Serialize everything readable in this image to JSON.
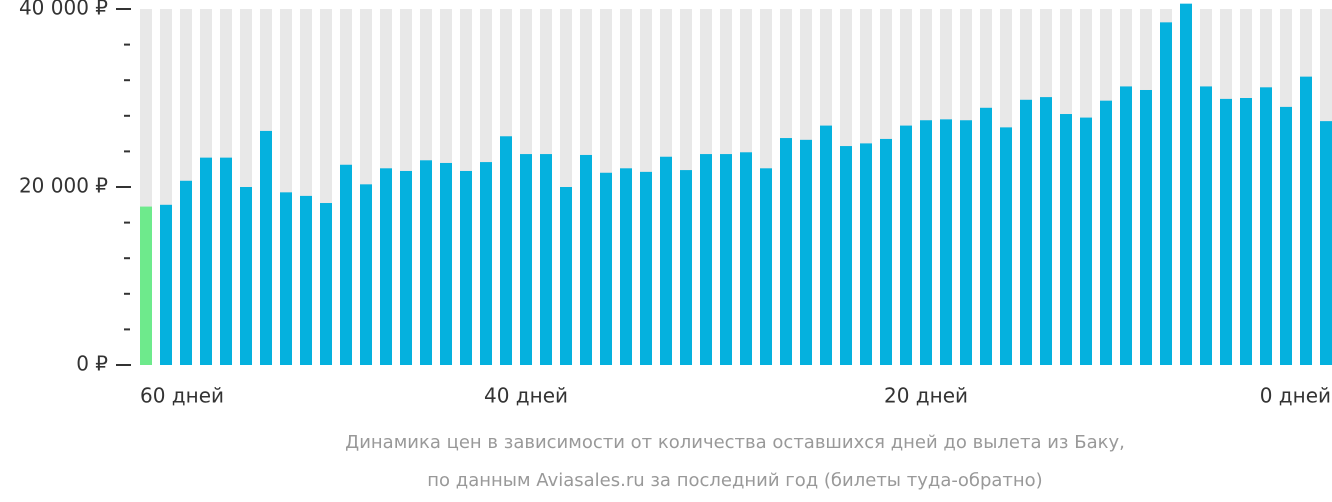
{
  "chart_data": {
    "type": "bar",
    "caption": [
      "Динамика цен в зависимости от количества оставшихся дней до вылета из Баку,",
      "по данным Aviasales.ru за последний год (билеты туда-обратно)"
    ],
    "categories": [
      "60 дней",
      null,
      null,
      null,
      null,
      null,
      null,
      null,
      null,
      null,
      null,
      null,
      null,
      null,
      null,
      null,
      null,
      null,
      null,
      "40 дней",
      null,
      null,
      null,
      null,
      null,
      null,
      null,
      null,
      null,
      null,
      null,
      null,
      null,
      null,
      null,
      null,
      null,
      null,
      null,
      "20 дней",
      null,
      null,
      null,
      null,
      null,
      null,
      null,
      null,
      null,
      null,
      null,
      null,
      null,
      null,
      null,
      null,
      null,
      null,
      null,
      "0 дней"
    ],
    "values": [
      17800,
      18000,
      20700,
      23300,
      23300,
      20000,
      26300,
      19400,
      19000,
      18200,
      22500,
      20300,
      22100,
      21800,
      23000,
      22700,
      21800,
      22800,
      25700,
      23700,
      23700,
      20000,
      23600,
      21600,
      22100,
      21700,
      23400,
      21900,
      23700,
      23700,
      23900,
      22100,
      25500,
      25300,
      26900,
      24600,
      24900,
      25400,
      26900,
      27500,
      27600,
      27500,
      28900,
      26700,
      29800,
      30100,
      28200,
      27800,
      29700,
      31300,
      30900,
      38500,
      40600,
      31300,
      29900,
      30000,
      31200,
      29000,
      32400,
      27400
    ],
    "color": "#05b1de",
    "highlight": {
      "index": 0,
      "color": "#6eea8c"
    },
    "background_color": "#e8e8e8",
    "ylim": [
      0,
      40000
    ],
    "yticks": [
      {
        "value": 0,
        "label": "0 ₽"
      },
      {
        "value": 20000,
        "label": "20 000 ₽"
      },
      {
        "value": 40000,
        "label": "40 000 ₽"
      }
    ],
    "minor_yticks": [
      4000,
      8000,
      12000,
      16000,
      24000,
      28000,
      32000,
      36000
    ]
  }
}
